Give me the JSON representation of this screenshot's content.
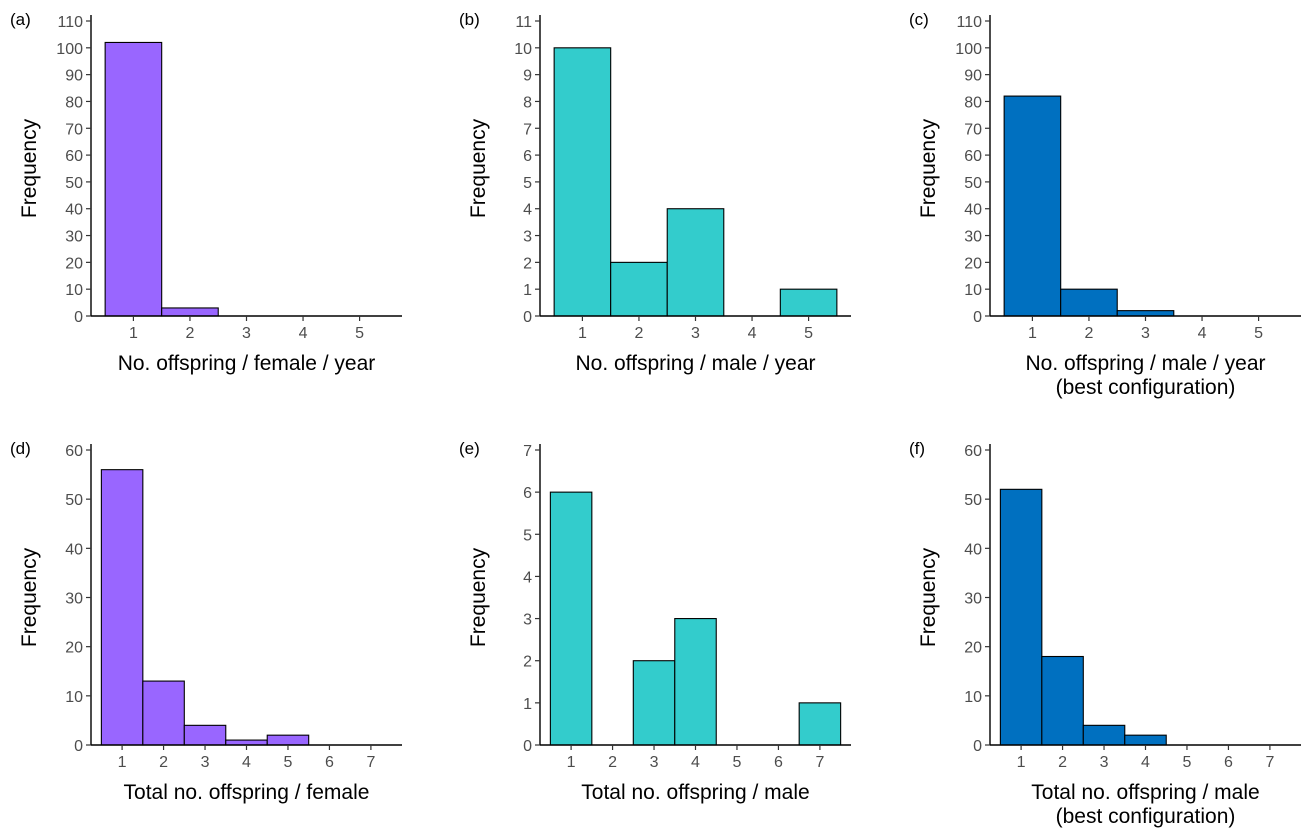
{
  "chart_data": [
    {
      "id": "a",
      "panel_label": "(a)",
      "type": "bar",
      "color": "#9966ff",
      "categories": [
        "1",
        "2",
        "3",
        "4",
        "5"
      ],
      "values": [
        102,
        3,
        0,
        0,
        0
      ],
      "xlabel": [
        "No. offspring / female / year"
      ],
      "ylabel": "Frequency",
      "ylim": [
        0,
        110
      ],
      "yticks": [
        0,
        10,
        20,
        30,
        40,
        50,
        60,
        70,
        80,
        90,
        100,
        110
      ]
    },
    {
      "id": "b",
      "panel_label": "(b)",
      "type": "bar",
      "color": "#33cccc",
      "categories": [
        "1",
        "2",
        "3",
        "4",
        "5"
      ],
      "values": [
        10,
        2,
        4,
        0,
        1
      ],
      "xlabel": [
        "No. offspring / male / year"
      ],
      "ylabel": "Frequency",
      "ylim": [
        0,
        11
      ],
      "yticks": [
        0,
        1,
        2,
        3,
        4,
        5,
        6,
        7,
        8,
        9,
        10,
        11
      ]
    },
    {
      "id": "c",
      "panel_label": "(c)",
      "type": "bar",
      "color": "#0070c0",
      "categories": [
        "1",
        "2",
        "3",
        "4",
        "5"
      ],
      "values": [
        82,
        10,
        2,
        0,
        0
      ],
      "xlabel": [
        "No. offspring / male / year",
        "(best configuration)"
      ],
      "ylabel": "Frequency",
      "ylim": [
        0,
        110
      ],
      "yticks": [
        0,
        10,
        20,
        30,
        40,
        50,
        60,
        70,
        80,
        90,
        100,
        110
      ]
    },
    {
      "id": "d",
      "panel_label": "(d)",
      "type": "bar",
      "color": "#9966ff",
      "categories": [
        "1",
        "2",
        "3",
        "4",
        "5",
        "6",
        "7"
      ],
      "values": [
        56,
        13,
        4,
        1,
        2,
        0,
        0
      ],
      "xlabel": [
        "Total no. offspring / female"
      ],
      "ylabel": "Frequency",
      "ylim": [
        0,
        60
      ],
      "yticks": [
        0,
        10,
        20,
        30,
        40,
        50,
        60
      ]
    },
    {
      "id": "e",
      "panel_label": "(e)",
      "type": "bar",
      "color": "#33cccc",
      "categories": [
        "1",
        "2",
        "3",
        "4",
        "5",
        "6",
        "7"
      ],
      "values": [
        6,
        0,
        2,
        3,
        0,
        0,
        1
      ],
      "xlabel": [
        "Total no. offspring / male"
      ],
      "ylabel": "Frequency",
      "ylim": [
        0,
        7
      ],
      "yticks": [
        0,
        1,
        2,
        3,
        4,
        5,
        6,
        7
      ]
    },
    {
      "id": "f",
      "panel_label": "(f)",
      "type": "bar",
      "color": "#0070c0",
      "categories": [
        "1",
        "2",
        "3",
        "4",
        "5",
        "6",
        "7"
      ],
      "values": [
        52,
        18,
        4,
        2,
        0,
        0,
        0
      ],
      "xlabel": [
        "Total no. offspring / male",
        "(best configuration)"
      ],
      "ylabel": "Frequency",
      "ylim": [
        0,
        60
      ],
      "yticks": [
        0,
        10,
        20,
        30,
        40,
        50,
        60
      ]
    }
  ]
}
